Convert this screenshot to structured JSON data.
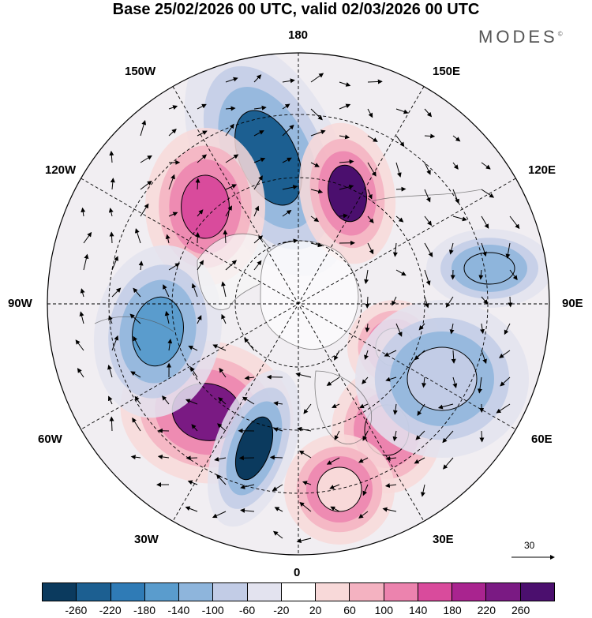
{
  "title": "Base 25/02/2026 00 UTC, valid 02/03/2026 00 UTC",
  "brand": "MODES",
  "brand_mark": "©",
  "longitudes": {
    "top": "180",
    "bottom": "0",
    "left": "90W",
    "right": "90E",
    "nw1": "150W",
    "nw2": "120W",
    "ne1": "150E",
    "ne2": "120E",
    "sw1": "60W",
    "sw2": "30W",
    "se1": "60E",
    "se2": "30E"
  },
  "reference_vector": {
    "label": "30"
  },
  "colorbar": {
    "ticks": [
      "-260",
      "-220",
      "-180",
      "-140",
      "-100",
      "-60",
      "-20",
      "20",
      "60",
      "100",
      "140",
      "180",
      "220",
      "260"
    ],
    "colors": [
      "#0b3a5e",
      "#1c5f91",
      "#2f7bb6",
      "#5a9ccd",
      "#8eb5dc",
      "#c2cce6",
      "#e3e3ef",
      "#ffffff",
      "#f8d9d9",
      "#f4b2c1",
      "#ec83ae",
      "#d94b9c",
      "#a9248f",
      "#7a1a83",
      "#4b0f6e"
    ]
  },
  "anomaly_centers": [
    {
      "value": -220,
      "color": "#1c5f91"
    },
    {
      "value": 220,
      "color": "#7a1a83"
    },
    {
      "value": 180,
      "color": "#d94b9c"
    },
    {
      "value": -140,
      "color": "#5a9ccd"
    },
    {
      "value": 260,
      "color": "#4b0f6e"
    },
    {
      "value": -260,
      "color": "#0b3a5e"
    },
    {
      "value": 140,
      "color": "#ec83ae"
    },
    {
      "value": 100,
      "color": "#f4b2c1"
    },
    {
      "value": -100,
      "color": "#8eb5dc"
    },
    {
      "value": 60,
      "color": "#f8d9d9"
    },
    {
      "value": -60,
      "color": "#c2cce6"
    }
  ]
}
